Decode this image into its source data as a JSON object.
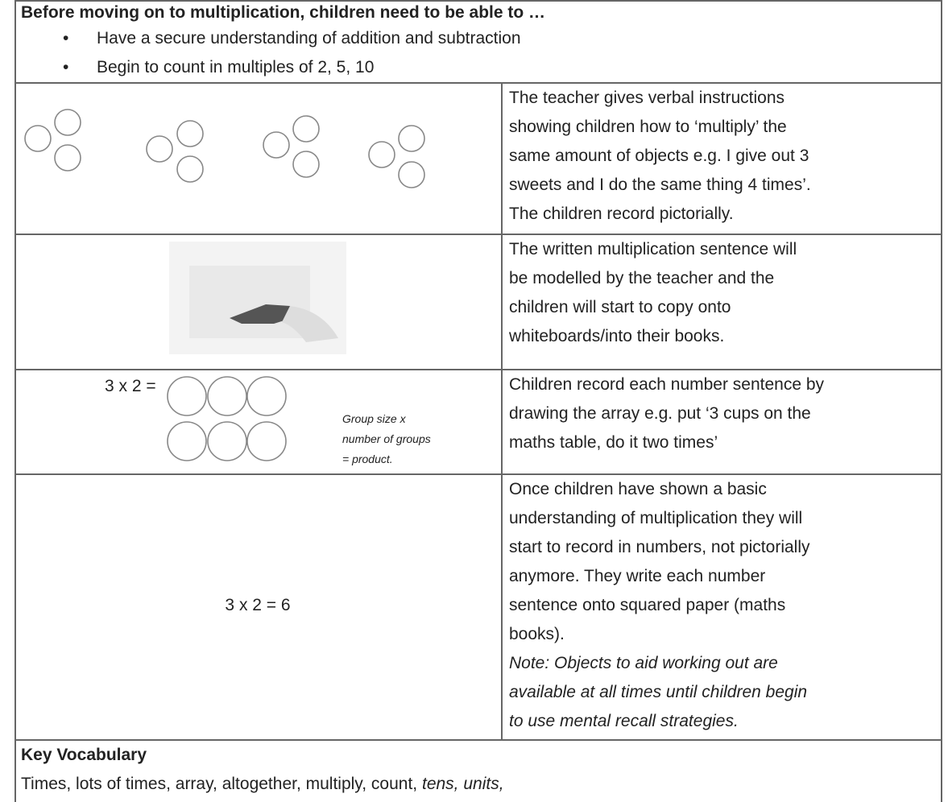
{
  "header": {
    "title": "Before moving on to multiplication, children need to be able to …",
    "bullets": [
      "Have a secure understanding of addition and subtraction",
      "Begin to count in multiples of 2, 5, 10"
    ]
  },
  "rows": [
    {
      "description": [
        "The teacher gives verbal instructions",
        "showing children how to ‘multiply’ the",
        "same amount of objects e.g. I give out 3",
        "sweets and I do the same thing 4 times’.",
        "The children record pictorially."
      ]
    },
    {
      "description": [
        "The written multiplication sentence will",
        "be modelled by the teacher and the",
        "children will start to copy onto",
        "whiteboards/into their books."
      ]
    },
    {
      "equation": "3 x 2 =",
      "note": [
        "Group size x",
        "number of groups",
        "= product."
      ],
      "description": [
        "Children record each number sentence by",
        "drawing the array e.g. put ‘3 cups on the",
        "maths table, do it two times’"
      ]
    },
    {
      "equation": "3 x 2 = 6",
      "description": [
        "Once children have shown a basic",
        "understanding of multiplication they will",
        "start to record in numbers, not pictorially",
        "anymore. They write each number",
        "sentence onto squared paper (maths",
        "books)."
      ],
      "italic_note": [
        "Note: Objects to aid working out are",
        "available at all times until children begin",
        "to use mental recall strategies."
      ]
    }
  ],
  "footer": {
    "title": "Key Vocabulary",
    "vocabulary": "Times, lots of times, array, altogether, multiply, count,",
    "vocabulary_italic": "tens, units,"
  }
}
